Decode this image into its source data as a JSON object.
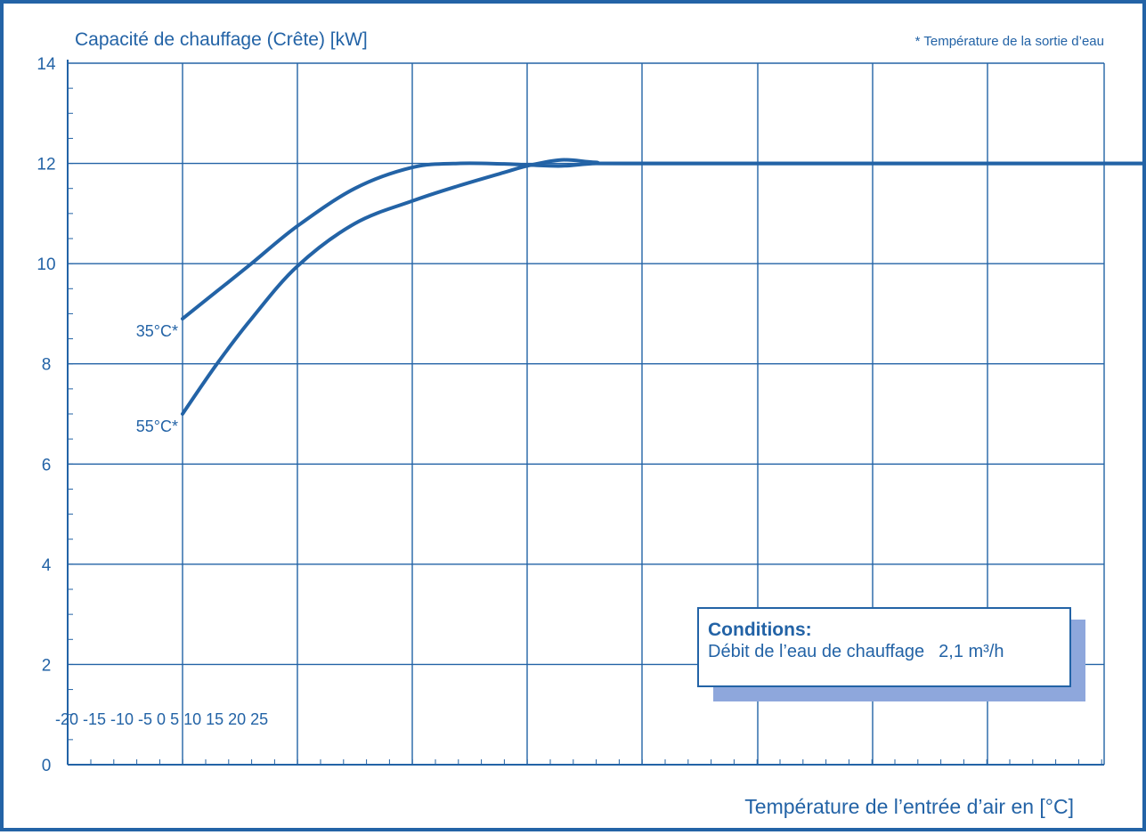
{
  "colors": {
    "line": "#2363a6",
    "grid": "#2363a6",
    "text": "#2363a6",
    "shadow": "#8ea7dc"
  },
  "chart_data": {
    "type": "line",
    "title": "",
    "ylabel": "Capacité de chauffage (Crête) [kW]",
    "xlabel": "Température de l’entrée d’air en [°C]",
    "note": "* Température de la sortie d’eau",
    "ylim": [
      0,
      14
    ],
    "yticks": [
      "0",
      "2",
      "4",
      "6",
      "8",
      "10",
      "12",
      "14"
    ],
    "xtick_labels": "-20 -15 -10 -5 0 5 10 15 20 25",
    "xlim": [
      -20,
      25
    ],
    "grid": true,
    "series": [
      {
        "name": "35°C*",
        "x": [
          -20,
          -18.5,
          -17,
          -15,
          -12.5,
          -10,
          -8,
          -6,
          -5,
          -3.5,
          -2,
          0,
          25
        ],
        "values": [
          8.9,
          9.45,
          10.0,
          10.75,
          11.5,
          11.92,
          12.0,
          11.99,
          11.97,
          11.95,
          12.0,
          12.0,
          12.0
        ]
      },
      {
        "name": "55°C*",
        "x": [
          -20,
          -18.5,
          -17,
          -15,
          -12.5,
          -10,
          -8,
          -6,
          -5,
          -3.5,
          -2,
          0,
          25
        ],
        "values": [
          7.0,
          8.0,
          8.9,
          9.95,
          10.8,
          11.25,
          11.55,
          11.82,
          11.95,
          12.07,
          12.02,
          12.0,
          12.0
        ]
      }
    ],
    "conditions": {
      "title": "Conditions:",
      "label": "Débit de l’eau de chauffage",
      "value": "2,1 m³/h"
    }
  }
}
